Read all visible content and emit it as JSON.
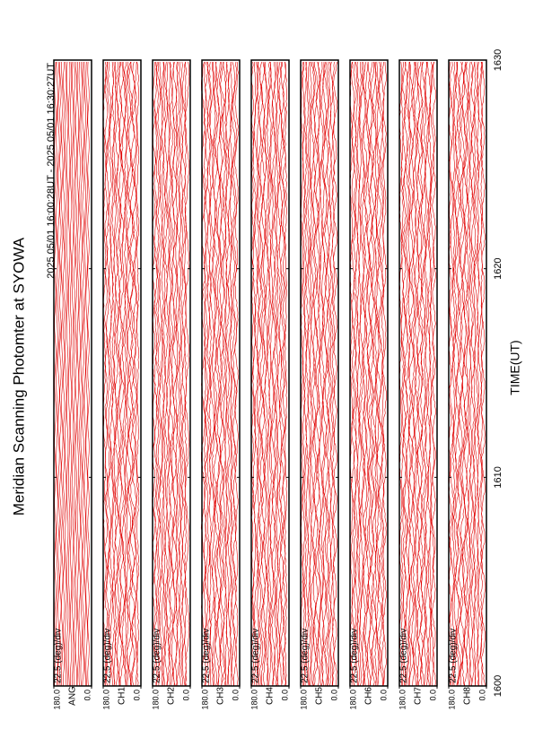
{
  "chart_data": {
    "type": "line",
    "title": "Meridian Scanning Photomter at SYOWA",
    "subtitle": "2025 05/01 16:00:28UT - 2025 05/01 16:30:27UT",
    "xlabel": "TIME(UT)",
    "xlim": [
      1600,
      1630
    ],
    "xticks": [
      1600,
      1610,
      1620,
      1630
    ],
    "scale_label": "22.5 (deg)/div",
    "color": "#e00000",
    "panels": [
      {
        "name": "ANG",
        "ylim": [
          0,
          180
        ],
        "yticks": [
          {
            "value": 180,
            "label": "180.0"
          },
          {
            "value": 0,
            "label": "0.0"
          }
        ]
      },
      {
        "name": "CH1",
        "ylim": [
          0,
          180
        ],
        "yticks": [
          {
            "value": 180,
            "label": "180.0"
          },
          {
            "value": 0,
            "label": "0.0"
          }
        ]
      },
      {
        "name": "CH2",
        "ylim": [
          0,
          180
        ],
        "yticks": [
          {
            "value": 180,
            "label": "180.0"
          },
          {
            "value": 0,
            "label": "0.0"
          }
        ]
      },
      {
        "name": "CH3",
        "ylim": [
          0,
          180
        ],
        "yticks": [
          {
            "value": 180,
            "label": "180.0"
          },
          {
            "value": 0,
            "label": "0.0"
          }
        ]
      },
      {
        "name": "CH4",
        "ylim": [
          0,
          180
        ],
        "yticks": [
          {
            "value": 180,
            "label": "180.0"
          },
          {
            "value": 0,
            "label": "0.0"
          }
        ]
      },
      {
        "name": "CH5",
        "ylim": [
          0,
          180
        ],
        "yticks": [
          {
            "value": 180,
            "label": "180.0"
          },
          {
            "value": 0,
            "label": "0.0"
          }
        ]
      },
      {
        "name": "CH6",
        "ylim": [
          0,
          180
        ],
        "yticks": [
          {
            "value": 180,
            "label": "180.0"
          },
          {
            "value": 0,
            "label": "0.0"
          }
        ]
      },
      {
        "name": "CH7",
        "ylim": [
          0,
          180
        ],
        "yticks": [
          {
            "value": 180,
            "label": "180.0"
          },
          {
            "value": 0,
            "label": "0.0"
          }
        ]
      },
      {
        "name": "CH8",
        "ylim": [
          0,
          180
        ],
        "yticks": [
          {
            "value": 180,
            "label": "180.0"
          },
          {
            "value": 0,
            "label": "0.0"
          }
        ]
      }
    ]
  }
}
